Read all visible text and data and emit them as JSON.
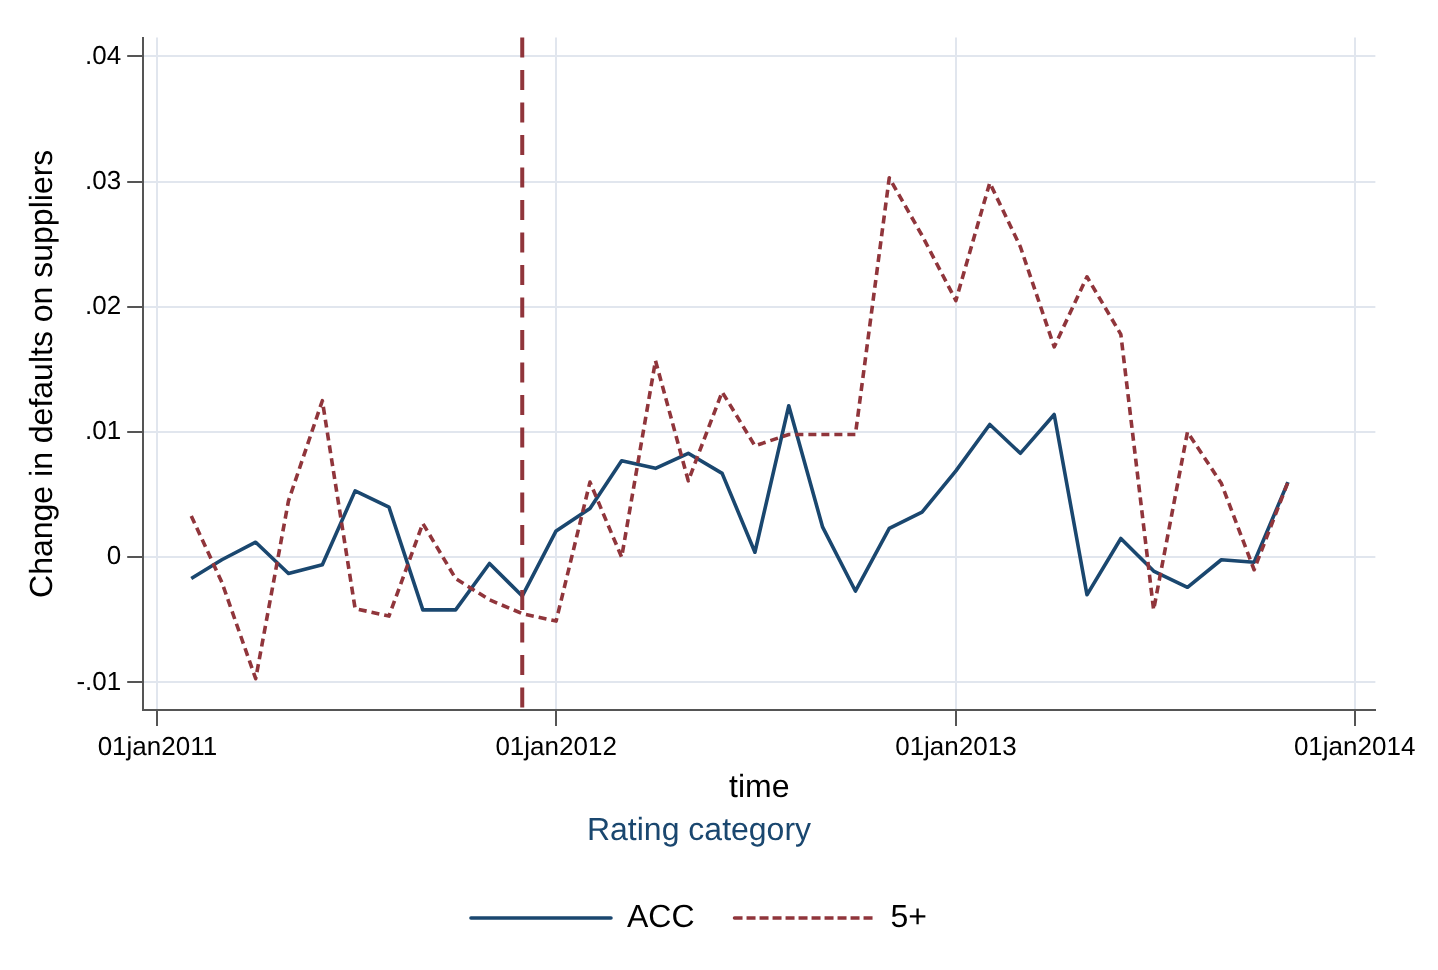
{
  "chart_data": {
    "type": "line",
    "xlabel": "time",
    "ylabel": "Change in defaults on suppliers",
    "legend_title": "Rating category",
    "legend": "bottom",
    "grid": true,
    "marker": "none",
    "x": [
      "2011-02",
      "2011-03",
      "2011-04",
      "2011-05",
      "2011-06",
      "2011-07",
      "2011-08",
      "2011-09",
      "2011-10",
      "2011-11",
      "2011-12",
      "2012-01",
      "2012-02",
      "2012-03",
      "2012-04",
      "2012-05",
      "2012-06",
      "2012-07",
      "2012-08",
      "2012-09",
      "2012-10",
      "2012-11",
      "2012-12",
      "2013-01",
      "2013-02",
      "2013-03",
      "2013-04",
      "2013-05",
      "2013-06",
      "2013-07",
      "2013-08",
      "2013-09",
      "2013-10",
      "2013-11"
    ],
    "xlim": [
      "2010-12-19",
      "2014-01-20"
    ],
    "xticks": [
      {
        "value": "2011-01-01",
        "label": "01jan2011"
      },
      {
        "value": "2012-01-01",
        "label": "01jan2012"
      },
      {
        "value": "2013-01-01",
        "label": "01jan2013"
      },
      {
        "value": "2014-01-01",
        "label": "01jan2014"
      }
    ],
    "ylim": [
      -0.0122,
      0.0415
    ],
    "yticks": [
      {
        "value": -0.01,
        "label": "-.01"
      },
      0,
      {
        "value": 0.01,
        "label": ".01"
      },
      {
        "value": 0.02,
        "label": ".02"
      },
      {
        "value": 0.03,
        "label": ".03"
      },
      {
        "value": 0.04,
        "label": ".04"
      }
    ],
    "ref_lines": [
      {
        "axis": "x",
        "value": "2011-12",
        "color": "#90353b",
        "line_style": "dashed"
      }
    ],
    "series": [
      {
        "name": "ACC",
        "color": "#1a476f",
        "line_style": "solid",
        "values": [
          -0.0017,
          -0.0002,
          0.0012,
          -0.0013,
          -0.0006,
          0.0053,
          0.004,
          -0.0042,
          -0.0042,
          -0.0005,
          -0.0031,
          0.0021,
          0.0039,
          0.0077,
          0.0071,
          0.0083,
          0.0067,
          0.0004,
          0.0121,
          0.0024,
          -0.0027,
          0.0023,
          0.0036,
          0.0069,
          0.0106,
          0.0083,
          0.0114,
          -0.003,
          0.0015,
          -0.0011,
          -0.0024,
          -0.0002,
          -0.0004,
          0.006
        ]
      },
      {
        "name": "5+",
        "color": "#90353b",
        "line_style": "dashed",
        "values": [
          0.0033,
          -0.002,
          -0.0097,
          0.0045,
          0.0125,
          -0.0041,
          -0.0047,
          0.0027,
          -0.0017,
          -0.0034,
          -0.0045,
          -0.0051,
          0.006,
          0.0,
          0.0157,
          0.0061,
          0.0132,
          0.0089,
          0.0098,
          0.0098,
          0.0098,
          0.0303,
          0.0257,
          0.0205,
          0.0299,
          0.0248,
          0.0168,
          0.0224,
          0.0178,
          -0.0042,
          0.01,
          0.0059,
          -0.001,
          0.006
        ]
      }
    ]
  }
}
